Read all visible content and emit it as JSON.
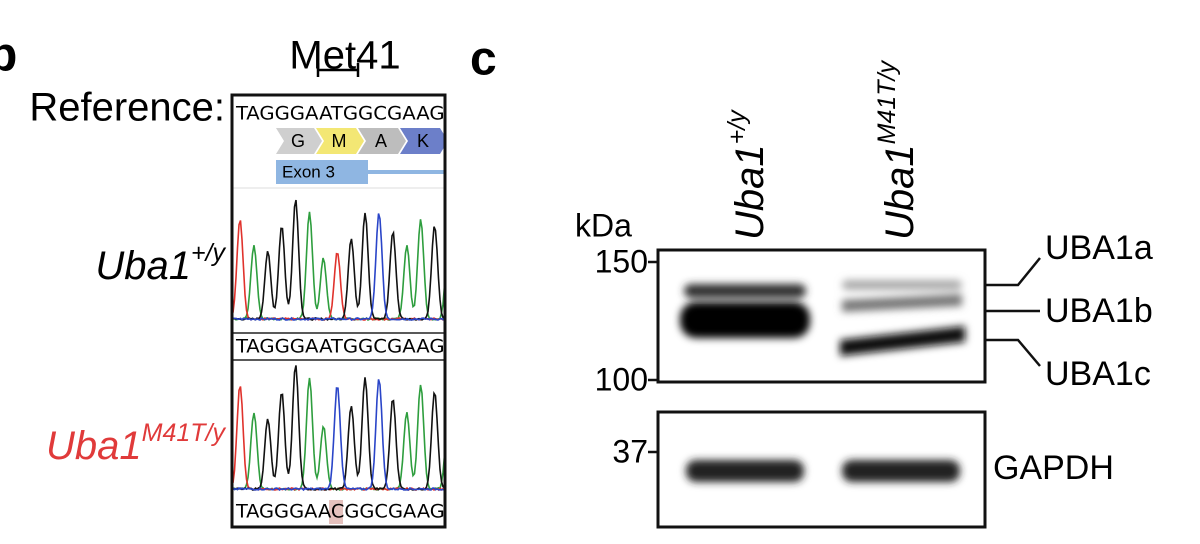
{
  "panel_b": {
    "label": "b",
    "title": "Met41",
    "reference_label": "Reference:",
    "reference_sequence": "TAGGGAATGGCGAAGA",
    "amino_acids": [
      "G",
      "M",
      "A",
      "K"
    ],
    "exon": "Exon 3",
    "tracks": [
      {
        "gene": "Uba1",
        "genotype": "+/y",
        "sequence": "TAGGGAATGGCGAAGA"
      },
      {
        "gene": "Uba1",
        "genotype": "M41T/y",
        "sequence": "TAGGGAACGGCGAAGA"
      }
    ]
  },
  "panel_c": {
    "label": "c",
    "unit": "kDa",
    "markers": [
      "150",
      "100",
      "37"
    ],
    "lanes": [
      {
        "gene": "Uba1",
        "genotype": "+/y"
      },
      {
        "gene": "Uba1",
        "genotype": "M41T/y"
      }
    ],
    "bands": [
      "UBA1a",
      "UBA1b",
      "UBA1c"
    ],
    "loading_control": "GAPDH"
  }
}
